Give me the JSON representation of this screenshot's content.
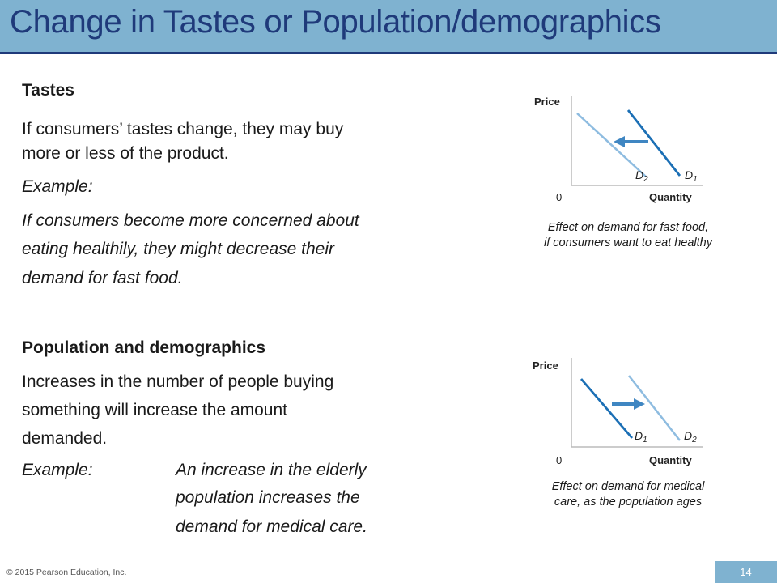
{
  "title": "Change in Tastes or Population/demographics",
  "tastes": {
    "heading": "Tastes",
    "line1": "If consumers’ tastes change, they may buy",
    "line2": "more or less of the product.",
    "example_label": "Example:",
    "ex1": "If consumers become more concerned about",
    "ex2": "eating healthily, they might decrease their",
    "ex3": "demand for fast food."
  },
  "population": {
    "heading": "Population and demographics",
    "line1": "Increases in the number of people buying",
    "line2": "something will increase the amount",
    "line3": "demanded.",
    "example_label": "Example:",
    "ex1": "An increase in the elderly",
    "ex2": "population increases the",
    "ex3": "demand for medical care."
  },
  "graph1": {
    "price_label": "Price",
    "quantity_label": "Quantity",
    "origin_label": "0",
    "curve_left": "D",
    "curve_left_sub": "2",
    "curve_right": "D",
    "curve_right_sub": "1",
    "caption_line1": "Effect on demand for fast food,",
    "caption_line2": "if consumers want to eat healthy"
  },
  "graph2": {
    "price_label": "Price",
    "quantity_label": "Quantity",
    "origin_label": "0",
    "curve_left": "D",
    "curve_left_sub": "1",
    "curve_right": "D",
    "curve_right_sub": "2",
    "caption_line1": "Effect on demand for medical",
    "caption_line2": "care, as the population ages"
  },
  "footer": {
    "copyright": "© 2015 Pearson Education, Inc.",
    "page_number": "14"
  },
  "colors": {
    "title_bar": "#7fb2d0",
    "title_text": "#1f3a7a",
    "dark_curve": "#1b6fb5",
    "light_curve": "#8ebce0",
    "arrow": "#3f86c2"
  }
}
